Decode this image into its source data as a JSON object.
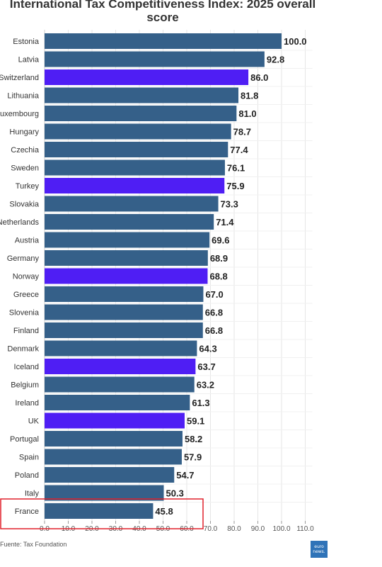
{
  "chart_data": {
    "type": "bar",
    "orientation": "horizontal",
    "title_line1": "International Tax Competitiveness Index: 2025 overall",
    "title_line2": "score",
    "categories": [
      "Estonia",
      "Latvia",
      "Switzerland",
      "Lithuania",
      "Luxembourg",
      "Hungary",
      "Czechia",
      "Sweden",
      "Turkey",
      "Slovakia",
      "Netherlands",
      "Austria",
      "Germany",
      "Norway",
      "Greece",
      "Slovenia",
      "Finland",
      "Denmark",
      "Iceland",
      "Belgium",
      "Ireland",
      "UK",
      "Portugal",
      "Spain",
      "Poland",
      "Italy",
      "France"
    ],
    "values": [
      100.0,
      92.8,
      86.0,
      81.8,
      81.0,
      78.7,
      77.4,
      76.1,
      75.9,
      73.3,
      71.4,
      69.6,
      68.9,
      68.8,
      67.0,
      66.8,
      66.8,
      64.3,
      63.7,
      63.2,
      61.3,
      59.1,
      58.2,
      57.9,
      54.7,
      50.3,
      45.8
    ],
    "value_labels": [
      "100.0",
      "92.8",
      "86.0",
      "81.8",
      "81.0",
      "78.7",
      "77.4",
      "76.1",
      "75.9",
      "73.3",
      "71.4",
      "69.6",
      "68.9",
      "68.8",
      "67.0",
      "66.8",
      "66.8",
      "64.3",
      "63.7",
      "63.2",
      "61.3",
      "59.1",
      "58.2",
      "57.9",
      "54.7",
      "50.3",
      "45.8"
    ],
    "highlighted": [
      "Switzerland",
      "Turkey",
      "Norway",
      "Iceland",
      "UK"
    ],
    "highlighted_note": "France",
    "x_ticks": [
      "0.0",
      "10.0",
      "20.0",
      "30.0",
      "40.0",
      "50.0",
      "60.0",
      "70.0",
      "80.0",
      "90.0",
      "100.0",
      "110.0"
    ],
    "xlim": [
      0,
      115
    ],
    "grid": "vertical gridlines",
    "colors": {
      "bar": "#356089",
      "bar_highlight": "#4f1ef4",
      "annotation_box": "#e0212b",
      "grid": "#e6e6e6"
    }
  },
  "source": "Fuente: Tax Foundation",
  "logo": {
    "line1": "euro",
    "line2": "news."
  }
}
